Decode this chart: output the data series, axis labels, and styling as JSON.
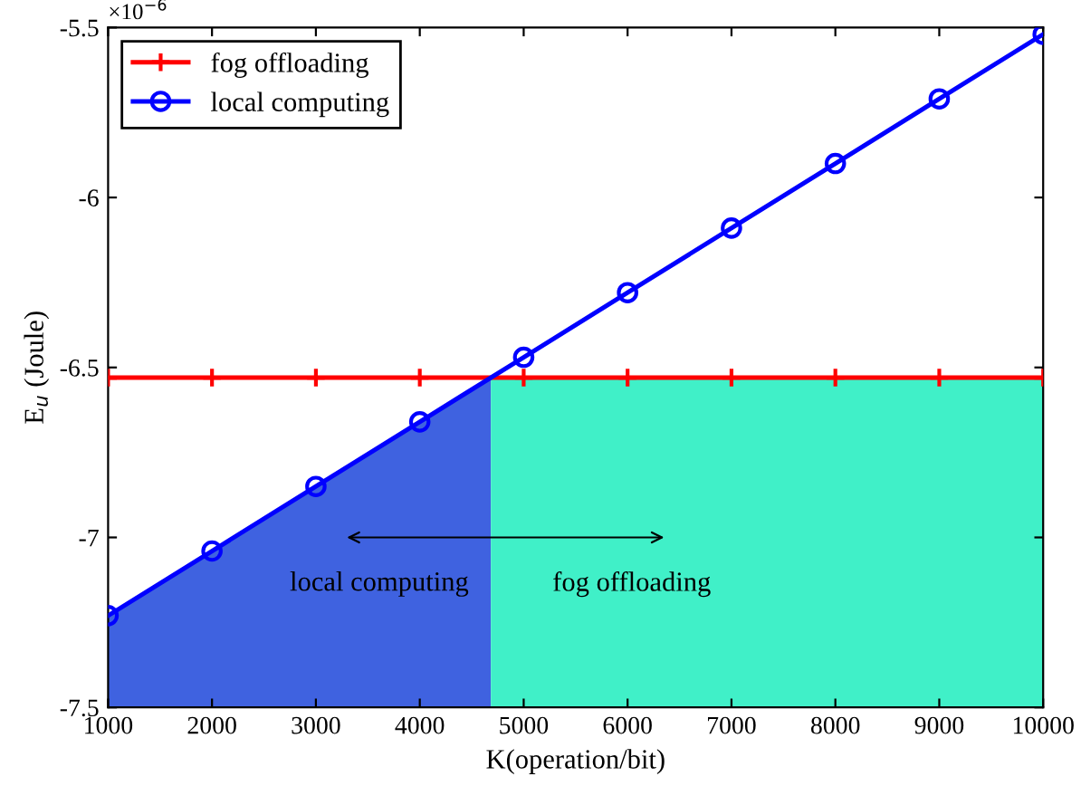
{
  "chart_data": {
    "type": "line",
    "xlabel": "K(operation/bit)",
    "ylabel": "E$_{u}$ (Joule)",
    "xlim": [
      1000,
      10000
    ],
    "xticks": [
      1000,
      2000,
      3000,
      4000,
      5000,
      6000,
      7000,
      8000,
      9000,
      10000
    ],
    "ylim": [
      -7.5,
      -5.5
    ],
    "yticks": [
      -7.5,
      -7,
      -6.5,
      -6,
      -5.5
    ],
    "series": [
      {
        "type": "area",
        "color": "#3f62e0",
        "x": [
          1000,
          1000,
          2000,
          3000,
          4000,
          4684,
          4684
        ],
        "values": [
          -7.5,
          -7.23,
          -7.04,
          -6.85,
          -6.66,
          -6.53,
          -7.5
        ]
      },
      {
        "type": "area",
        "color": "#40f0c8",
        "x": [
          4684,
          4684,
          10000,
          10000
        ],
        "values": [
          -7.5,
          -6.53,
          -6.53,
          -7.5
        ]
      },
      {
        "name": "fog offloading",
        "color": "#ff0000",
        "marker": "cross",
        "x": [
          1000,
          2000,
          3000,
          4000,
          5000,
          6000,
          7000,
          8000,
          9000,
          10000
        ],
        "values": [
          -6.53,
          -6.53,
          -6.53,
          -6.53,
          -6.53,
          -6.53,
          -6.53,
          -6.53,
          -6.53,
          -6.53
        ]
      },
      {
        "name": "local computing",
        "color": "#0000ff",
        "marker": "circle",
        "x": [
          1000,
          2000,
          3000,
          4000,
          5000,
          6000,
          7000,
          8000,
          9000,
          10000
        ],
        "values": [
          -7.23,
          -7.04,
          -6.85,
          -6.66,
          -6.47,
          -6.28,
          -6.09,
          -5.9,
          -5.71,
          -5.52
        ]
      }
    ],
    "annotations": [
      "×10$^{−6}$",
      "local computing",
      "fog offloading"
    ],
    "legend": "top left",
    "grid": false
  }
}
